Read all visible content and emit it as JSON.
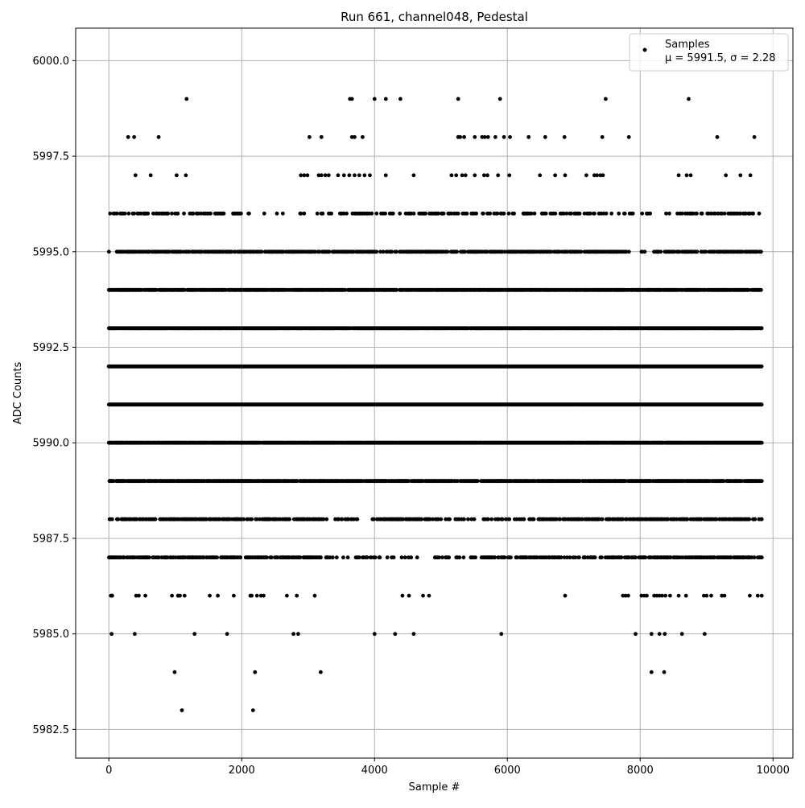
{
  "chart_data": {
    "type": "scatter",
    "title": "Run 661, channel048, Pedestal",
    "xlabel": "Sample #",
    "ylabel": "ADC Counts",
    "xlim": [
      -500,
      10300
    ],
    "ylim": [
      5981.75,
      6000.85
    ],
    "xticks": [
      0,
      2000,
      4000,
      6000,
      8000,
      10000
    ],
    "xtick_labels": [
      "0",
      "2000",
      "4000",
      "6000",
      "8000",
      "10000"
    ],
    "yticks": [
      5982.5,
      5985.0,
      5987.5,
      5990.0,
      5992.5,
      5995.0,
      5997.5,
      6000.0
    ],
    "ytick_labels": [
      "5982.5",
      "5985.0",
      "5987.5",
      "5990.0",
      "5992.5",
      "5995.0",
      "5997.5",
      "6000.0"
    ],
    "grid": true,
    "legend": {
      "placement": "top-right",
      "entries": [
        {
          "label": "Samples",
          "stats": "μ = 5991.5, σ = 2.28"
        }
      ]
    },
    "marker_color": "#000000",
    "x_extent": [
      0,
      9830
    ],
    "levels": [
      {
        "y": 5983,
        "x": [
          1100,
          2170
        ]
      },
      {
        "y": 5984,
        "x": [
          990,
          2200,
          3190,
          8170,
          8360
        ]
      },
      {
        "y": 5985,
        "x": [
          40,
          390,
          1290,
          1780,
          2780,
          2850,
          4000,
          4310,
          4590,
          5910,
          7930,
          8170,
          8290,
          8370,
          8630,
          8970
        ]
      },
      {
        "y": 5986,
        "x": [
          30,
          50,
          410,
          450,
          550,
          950,
          1040,
          1070,
          1140,
          1520,
          1640,
          1880,
          2130,
          2150,
          2230,
          2290,
          2330,
          2680,
          2830,
          3100,
          4420,
          4520,
          4730,
          4820,
          6870,
          7740,
          7780,
          7820,
          8020,
          8060,
          8100,
          8210,
          8250,
          8290,
          8330,
          8380,
          8450,
          8580,
          8690,
          8960,
          9000,
          9070,
          9230,
          9270,
          9650,
          9770,
          9830
        ]
      },
      {
        "y": 5999,
        "x": [
          1170,
          3630,
          3660,
          4000,
          4170,
          4390,
          5260,
          5890,
          7480,
          8730
        ]
      },
      {
        "y": 5998,
        "x": [
          290,
          380,
          750,
          3020,
          3200,
          3660,
          3700,
          3820,
          5260,
          5290,
          5350,
          5510,
          5620,
          5660,
          5710,
          5820,
          5950,
          6040,
          6320,
          6570,
          6860,
          7430,
          7830,
          9160,
          9720
        ]
      },
      {
        "y": 5997,
        "x": [
          400,
          630,
          1020,
          1160,
          2890,
          2940,
          2990,
          3160,
          3200,
          3260,
          3310,
          3450,
          3540,
          3620,
          3700,
          3770,
          3850,
          3930,
          4170,
          4590,
          5160,
          5230,
          5320,
          5370,
          5510,
          5650,
          5700,
          5860,
          6030,
          6490,
          6720,
          6870,
          7190,
          7310,
          7350,
          7400,
          7440,
          8580,
          8700,
          8760,
          9290,
          9510,
          9660
        ]
      }
    ],
    "dense_levels": [
      {
        "y": 5987,
        "density": 0.55,
        "sparse_ranges": [
          [
            3200,
            5600
          ],
          [
            6800,
            7500
          ]
        ],
        "sparse_density": 0.2
      },
      {
        "y": 5988,
        "density": 0.6,
        "sparse_ranges": [
          [
            3200,
            4000
          ],
          [
            5000,
            6300
          ]
        ],
        "sparse_density": 0.2
      },
      {
        "y": 5989,
        "density": 0.8,
        "sparse_ranges": [],
        "sparse_density": 0.8
      },
      {
        "y": 5990,
        "density": 0.95,
        "sparse_ranges": [],
        "sparse_density": 0.95
      },
      {
        "y": 5991,
        "density": 1.0,
        "sparse_ranges": [],
        "sparse_density": 1.0
      },
      {
        "y": 5992,
        "density": 1.0,
        "sparse_ranges": [],
        "sparse_density": 1.0
      },
      {
        "y": 5993,
        "density": 0.95,
        "sparse_ranges": [],
        "sparse_density": 0.95
      },
      {
        "y": 5994,
        "density": 0.8,
        "sparse_ranges": [],
        "sparse_density": 0.8
      },
      {
        "y": 5995,
        "density": 0.6,
        "sparse_ranges": [
          [
            0,
            120
          ],
          [
            7800,
            8200
          ]
        ],
        "sparse_density": 0.15
      },
      {
        "y": 5996,
        "density": 0.3,
        "sparse_ranges": [
          [
            2000,
            3100
          ],
          [
            7900,
            8500
          ]
        ],
        "sparse_density": 0.08
      }
    ]
  }
}
